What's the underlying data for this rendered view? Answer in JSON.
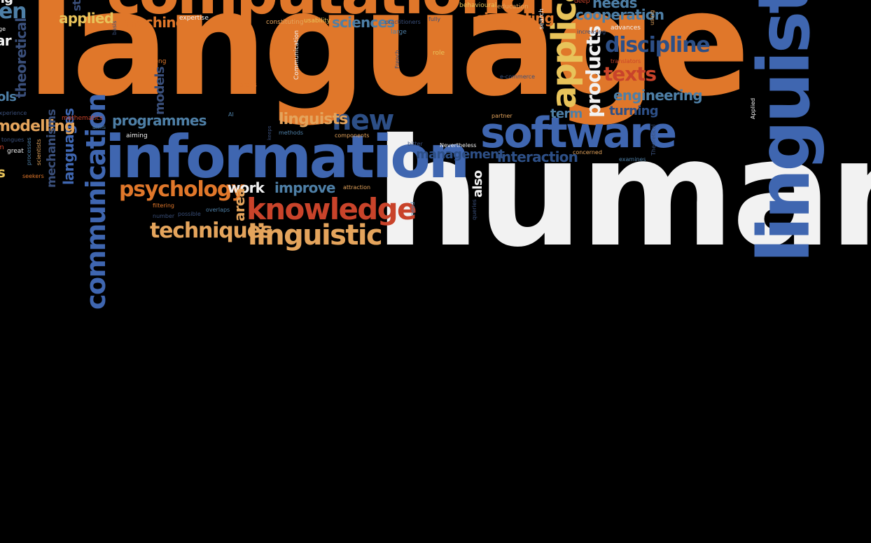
{
  "palette": {
    "orange": "#e0772a",
    "blue": "#3f66b0",
    "white": "#f2f2f2",
    "tan": "#e4a45c",
    "red": "#c9432a",
    "yellow": "#e8c35a",
    "navy": "#3a4f7a",
    "teal": "#4e7fa6",
    "background": "#000000"
  },
  "words": {
    "human": "human",
    "language": "language",
    "computational": "computational",
    "linguistics": "linguistics",
    "information": "information",
    "software": "software",
    "communication": "communication",
    "applications": "applications",
    "knowledge": "knowledge",
    "linguistic": "linguistic",
    "new": "new",
    "psychology": "psychology",
    "techniques": "techniques",
    "discipline": "discipline",
    "texts": "texts",
    "products": "products",
    "programmes": "programmes",
    "linguists": "linguists",
    "languages": "languages",
    "engineering": "engineering",
    "cooperation": "cooperation",
    "simulating": "simulating",
    "machine": "machine",
    "applied": "applied",
    "sciences": "sciences",
    "models": "models",
    "modelling": "modelling",
    "theoretical": "theoretical",
    "management": "management",
    "interaction": "interaction",
    "turning": "turning",
    "term": "term",
    "needs": "needs",
    "improve": "improve",
    "work": "work",
    "also": "also",
    "area": "area",
    "mechanisms": "mechanisms",
    "en": "en",
    "aimed": "aimed",
    "ar": "ar",
    "mathematics": "mathematics",
    "aiming": "aiming",
    "aims": "aims",
    "long": "long",
    "areas": "areas",
    "expertise": "expertise",
    "constituting": "constituting",
    "usability": "usability",
    "practitioners": "practitioners",
    "large": "large",
    "fully": "fully",
    "role": "role",
    "Communication": "Communication",
    "French": "French",
    "behavioural": "behavioural",
    "education": "education",
    "search": "search",
    "deep": "deep",
    "using": "using",
    "increasing": "increasing",
    "advances": "advances",
    "e-commerce": "e-commerce",
    "translators": "translators",
    "Applied": "Applied",
    "partner": "partner",
    "AI": "AI",
    "keeps": "keeps",
    "methods": "methods",
    "components": "components",
    "bitter": "bitter",
    "Nevertheless": "Nevertheless",
    "concerned": "concerned",
    "examines": "examines",
    "Theoretical": "Theoretical",
    "attraction": "attraction",
    "filtering": "filtering",
    "overlaps": "overlaps",
    "possible": "possible",
    "number": "number",
    "need": "need",
    "queries": "queries",
    "great": "great",
    "tongues": "tongues",
    "scientists": "scientists",
    "processes": "processes",
    "seekers": "seekers",
    "experience": "experience",
    "ols": "ols",
    "basis": "basis",
    "st": "st",
    "ng": "ng",
    "ge": "ge",
    "s": "s",
    "m": "m",
    "society": "society",
    "set": "set"
  }
}
